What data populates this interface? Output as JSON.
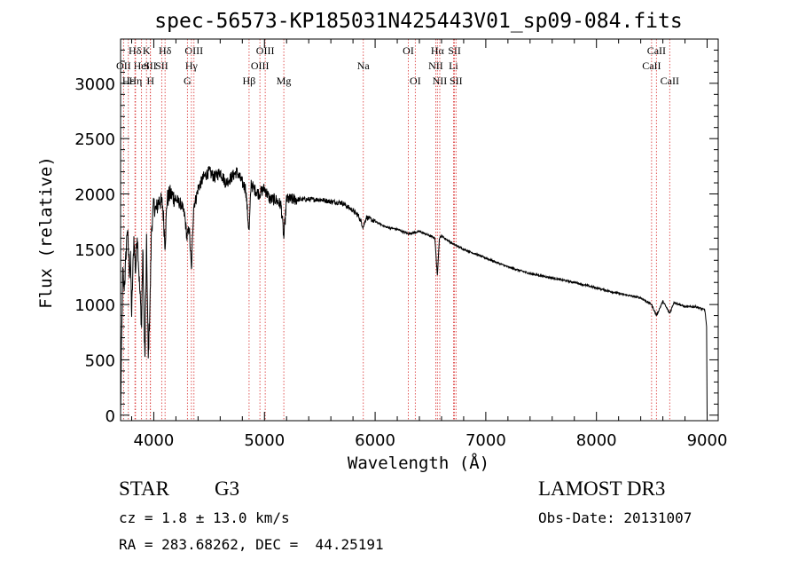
{
  "chart_data": {
    "type": "line",
    "title": "spec-56573-KP185031N425443V01_sp09-084.fits",
    "xlabel": "Wavelength (Å)",
    "ylabel": "Flux (relative)",
    "xlim": [
      3700,
      9100
    ],
    "ylim": [
      -50,
      3400
    ],
    "x_ticks": [
      4000,
      5000,
      6000,
      7000,
      8000,
      9000
    ],
    "y_ticks": [
      0,
      500,
      1000,
      1500,
      2000,
      2500,
      3000
    ],
    "grid": false,
    "series": [
      {
        "name": "flux",
        "x": [
          3700,
          3710,
          3720,
          3730,
          3740,
          3760,
          3780,
          3790,
          3800,
          3820,
          3835,
          3850,
          3870,
          3890,
          3900,
          3920,
          3935,
          3950,
          3968,
          3980,
          4000,
          4020,
          4050,
          4080,
          4102,
          4120,
          4150,
          4200,
          4250,
          4280,
          4300,
          4320,
          4340,
          4360,
          4380,
          4400,
          4450,
          4500,
          4550,
          4600,
          4650,
          4700,
          4750,
          4800,
          4830,
          4861,
          4880,
          4900,
          4950,
          5000,
          5050,
          5100,
          5150,
          5175,
          5200,
          5300,
          5400,
          5500,
          5600,
          5700,
          5800,
          5850,
          5893,
          5920,
          6000,
          6100,
          6200,
          6300,
          6400,
          6500,
          6540,
          6563,
          6580,
          6600,
          6700,
          6800,
          7000,
          7200,
          7400,
          7600,
          7800,
          8000,
          8200,
          8400,
          8498,
          8542,
          8600,
          8662,
          8700,
          8800,
          8900,
          8980,
          8995,
          9000
        ],
        "values": [
          0,
          700,
          1300,
          1150,
          1250,
          1700,
          1300,
          1400,
          900,
          1600,
          1300,
          1650,
          1200,
          800,
          1500,
          500,
          1550,
          500,
          1100,
          1700,
          1900,
          1850,
          1950,
          1900,
          1550,
          1950,
          2000,
          1950,
          1900,
          1800,
          1600,
          1700,
          1300,
          1900,
          1950,
          2050,
          2150,
          2200,
          2150,
          2200,
          2100,
          2150,
          2200,
          2100,
          2050,
          1650,
          2100,
          2050,
          2000,
          2050,
          1950,
          1950,
          1900,
          1600,
          1950,
          1950,
          1950,
          1950,
          1930,
          1920,
          1850,
          1800,
          1700,
          1790,
          1750,
          1700,
          1680,
          1640,
          1660,
          1620,
          1600,
          1250,
          1600,
          1620,
          1550,
          1500,
          1420,
          1340,
          1280,
          1240,
          1200,
          1150,
          1100,
          1060,
          1000,
          900,
          1030,
          920,
          1020,
          980,
          980,
          950,
          800,
          0
        ]
      }
    ],
    "lines_top": [
      {
        "label": "Hδ",
        "x": 3830,
        "row": 0
      },
      {
        "label": "OII",
        "x": 3727,
        "row": 1
      },
      {
        "label": "Hε",
        "x": 3770,
        "row": 2
      },
      {
        "label": "K",
        "x": 3934,
        "row": 0
      },
      {
        "label": "HeI",
        "x": 3889,
        "row": 1
      },
      {
        "label": "Hη",
        "x": 3835,
        "row": 2
      },
      {
        "label": "SII",
        "x": 3968,
        "row": 1
      },
      {
        "label": "H",
        "x": 3970,
        "row": 2
      },
      {
        "label": "Hδ",
        "x": 4102,
        "row": 0
      },
      {
        "label": "SII",
        "x": 4072,
        "row": 1
      },
      {
        "label": "OIII",
        "x": 4363,
        "row": 0
      },
      {
        "label": "Hγ",
        "x": 4340,
        "row": 1
      },
      {
        "label": "G",
        "x": 4304,
        "row": 2
      },
      {
        "label": "Hβ",
        "x": 4861,
        "row": 2
      },
      {
        "label": "OIII",
        "x": 5007,
        "row": 0
      },
      {
        "label": "OIII",
        "x": 4959,
        "row": 1
      },
      {
        "label": "Mg",
        "x": 5175,
        "row": 2
      },
      {
        "label": "Na",
        "x": 5893,
        "row": 1
      },
      {
        "label": "OI",
        "x": 6300,
        "row": 0
      },
      {
        "label": "OI",
        "x": 6363,
        "row": 2
      },
      {
        "label": "Hα",
        "x": 6563,
        "row": 0
      },
      {
        "label": "NII",
        "x": 6548,
        "row": 1
      },
      {
        "label": "NII",
        "x": 6584,
        "row": 2
      },
      {
        "label": "SII",
        "x": 6717,
        "row": 0
      },
      {
        "label": "Li",
        "x": 6708,
        "row": 1
      },
      {
        "label": "SII",
        "x": 6731,
        "row": 2
      },
      {
        "label": "CaII",
        "x": 8542,
        "row": 0
      },
      {
        "label": "CaII",
        "x": 8498,
        "row": 1
      },
      {
        "label": "CaII",
        "x": 8662,
        "row": 2
      }
    ]
  },
  "info": {
    "class_label": "STAR",
    "subclass_label": "G3",
    "survey": "LAMOST DR3",
    "redshift": "cz = 1.8 ± 13.0 km/s",
    "obs_date": "Obs-Date: 20131007",
    "coords": "RA = 283.68262, DEC =  44.25191"
  }
}
